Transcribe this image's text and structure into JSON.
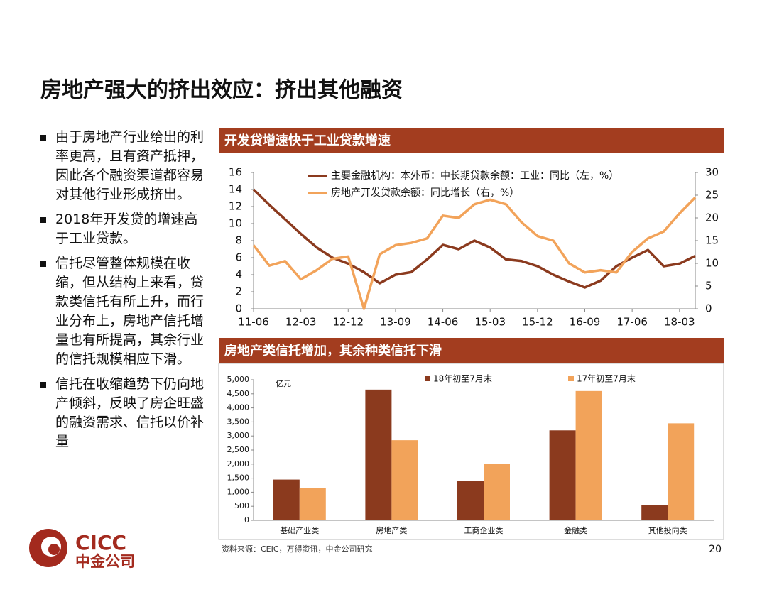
{
  "title": "房地产强大的挤出效应：挤出其他融资",
  "bullets": [
    "由于房地产行业给出的利率更高，且有资产抵押，因此各个融资渠道都容易对其他行业形成挤出。",
    "2018年开发贷的增速高于工业贷款。",
    "信托尽管整体规模在收缩，但从结构上来看，贷款类信托有所上升，而行业分布上，房地产信托增量也有所提高，其余行业的信托规模相应下滑。",
    "信托在收缩趋势下仍向地产倾斜，反映了房企旺盛的融资需求、信托以价补量"
  ],
  "source": "资料来源：CEIC，万得资讯，中金公司研究",
  "page_number": "20",
  "logo": {
    "name_en": "CICC",
    "name_cn": "中金公司"
  },
  "chart_data": [
    {
      "type": "line",
      "title": "开发贷增速快于工业贷款增速",
      "categories": [
        "11-06",
        null,
        null,
        "12-03",
        null,
        null,
        "12-12",
        null,
        null,
        "13-09",
        null,
        null,
        "14-06",
        null,
        null,
        "15-03",
        null,
        null,
        "15-12",
        null,
        null,
        "16-09",
        null,
        null,
        "17-06",
        null,
        null,
        "18-03",
        null
      ],
      "series": [
        {
          "name": "主要金融机构：本外币：中长期贷款余额：工业：同比（左，%）",
          "color": "#8b3a1e",
          "axis": "y",
          "values": [
            14,
            12.2,
            10.5,
            8.8,
            7.2,
            6.0,
            5.3,
            4.3,
            3.0,
            4.0,
            4.3,
            5.8,
            7.5,
            7.0,
            8.0,
            7.2,
            5.8,
            5.6,
            5.0,
            4.0,
            3.2,
            2.5,
            3.3,
            5.0,
            6.0,
            6.9,
            5.0,
            5.3,
            6.2
          ]
        },
        {
          "name": "房地产开发贷款余额：同比增长（右，%）",
          "color": "#f2a35a",
          "axis": "y2",
          "values": [
            14,
            9.5,
            10.5,
            6.5,
            8.5,
            11,
            11.5,
            0,
            12,
            14,
            14.5,
            15.5,
            20.5,
            20,
            23,
            24,
            23,
            19,
            16,
            15,
            10,
            8,
            8.5,
            8,
            12.5,
            15.5,
            17,
            21,
            24.5
          ]
        }
      ],
      "ylim": [
        0,
        16
      ],
      "yticks": [
        0,
        2,
        4,
        6,
        8,
        10,
        12,
        14,
        16
      ],
      "y2lim": [
        0,
        30
      ],
      "y2ticks": [
        0,
        5,
        10,
        15,
        20,
        25,
        30
      ],
      "grid": false
    },
    {
      "type": "bar",
      "title": "房地产类信托增加，其余种类信托下滑",
      "unit_label": "亿元",
      "categories": [
        "基础产业类",
        "房地产类",
        "工商企业类",
        "金融类",
        "其他投向类"
      ],
      "series": [
        {
          "name": "18年初至7月末",
          "color": "#8b3a1e",
          "values": [
            1450,
            4650,
            1400,
            3200,
            550
          ]
        },
        {
          "name": "17年初至7月末",
          "color": "#f2a35a",
          "values": [
            1150,
            2850,
            2000,
            4600,
            3450
          ]
        }
      ],
      "ylim": [
        0,
        5000
      ],
      "yticks": [
        0,
        500,
        {
          "value": 1000,
          "label": "1,000"
        },
        {
          "value": 1500,
          "label": "1,500"
        },
        {
          "value": 2000,
          "label": "2,000"
        },
        {
          "value": 2500,
          "label": "2,500"
        },
        {
          "value": 3000,
          "label": "3,000"
        },
        {
          "value": 3500,
          "label": "3,500"
        },
        {
          "value": 4000,
          "label": "4,000"
        },
        {
          "value": 4500,
          "label": "4,500"
        },
        {
          "value": 5000,
          "label": "5,000"
        }
      ],
      "grid": false
    }
  ]
}
